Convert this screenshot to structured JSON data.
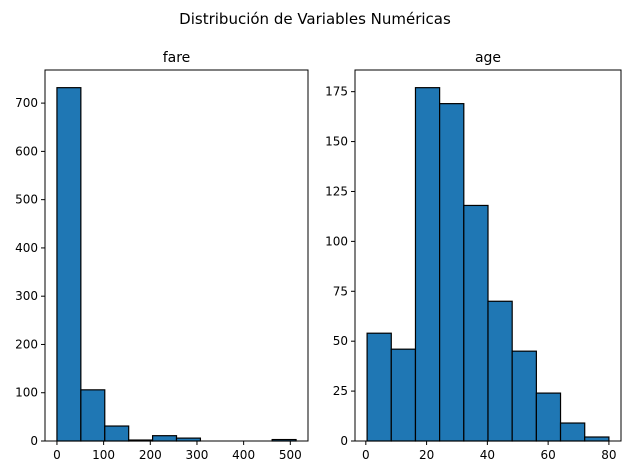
{
  "figure": {
    "title": "Distribución de Variables Numéricas"
  },
  "chart_data": [
    {
      "type": "bar",
      "title": "fare",
      "xlabel": "",
      "ylabel": "",
      "bin_edges": [
        0,
        51.23,
        102.47,
        153.7,
        204.93,
        256.16,
        307.4,
        358.63,
        409.86,
        461.1,
        512.33
      ],
      "values": [
        732,
        106,
        31,
        2,
        11,
        6,
        0,
        0,
        0,
        3
      ],
      "xlim": [
        -25.6,
        537.9
      ],
      "ylim": [
        0,
        768.6
      ],
      "xticks": [
        0,
        100,
        200,
        300,
        400,
        500
      ],
      "yticks": [
        0,
        100,
        200,
        300,
        400,
        500,
        600,
        700
      ],
      "bar_color": "#1f77b4",
      "edge_color": "#000000",
      "grid": false
    },
    {
      "type": "bar",
      "title": "age",
      "xlabel": "",
      "ylabel": "",
      "bin_edges": [
        0.42,
        8.38,
        16.34,
        24.29,
        32.25,
        40.21,
        48.17,
        56.13,
        64.08,
        72.04,
        80.0
      ],
      "values": [
        54,
        46,
        177,
        169,
        118,
        70,
        45,
        24,
        9,
        2
      ],
      "xlim": [
        -3.56,
        83.98
      ],
      "ylim": [
        0,
        185.85
      ],
      "xticks": [
        0,
        20,
        40,
        60,
        80
      ],
      "yticks": [
        0,
        25,
        50,
        75,
        100,
        125,
        150,
        175
      ],
      "bar_color": "#1f77b4",
      "edge_color": "#000000",
      "grid": false
    }
  ]
}
